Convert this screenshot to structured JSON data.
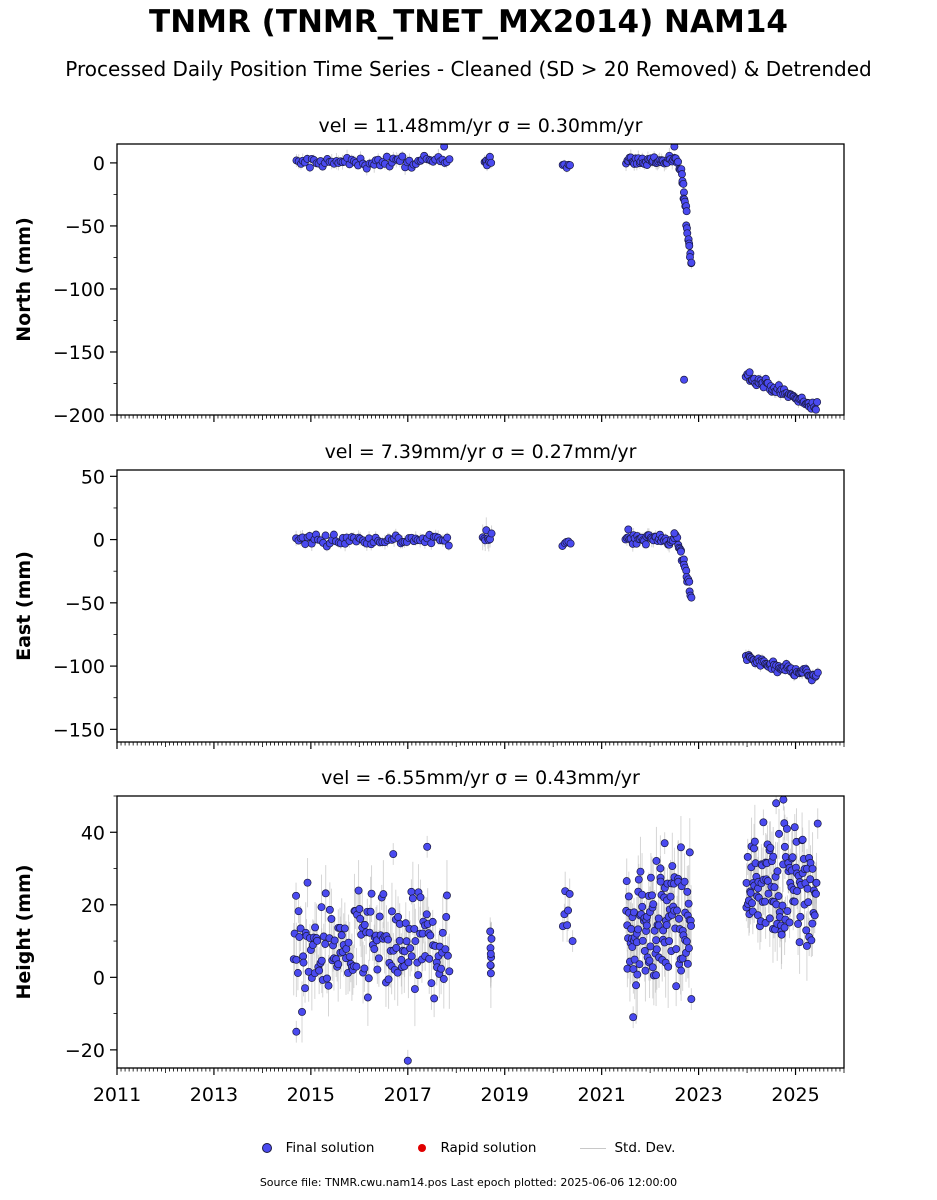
{
  "title": "TNMR (TNMR_TNET_MX2014) NAM14",
  "subtitle": "Processed Daily Position Time Series - Cleaned (SD > 20 Removed) & Detrended",
  "legend": {
    "final": "Final solution",
    "rapid": "Rapid solution",
    "std": "Std. Dev."
  },
  "source_note": "Source file: TNMR.cwu.nam14.pos  Last epoch plotted: 2025-06-06 12:00:00",
  "colors": {
    "final": "#4a4af0",
    "final_edge": "#1a1a40",
    "rapid": "#e00000",
    "std": "#b4b4b4"
  },
  "chart_data": [
    {
      "type": "scatter",
      "title": "vel = 11.48mm/yr   σ = 0.30mm/yr",
      "ylabel": "North (mm)",
      "xlim": [
        2011,
        2026
      ],
      "ylim": [
        -200,
        15
      ],
      "yticks": [
        -200,
        -150,
        -100,
        -50,
        0
      ],
      "ytick_labels": [
        "−200",
        "−150",
        "−100",
        "−50",
        "0"
      ],
      "series": [
        {
          "name": "Final solution",
          "segments": [
            {
              "x0": 2014.7,
              "x1": 2017.85,
              "y0": 0,
              "y1": 1,
              "noise": 2.2,
              "sd": 5,
              "n": 70
            },
            {
              "x0": 2018.58,
              "x1": 2018.72,
              "y0": 3,
              "y1": 2,
              "noise": 2,
              "sd": 7,
              "n": 8
            },
            {
              "x0": 2020.2,
              "x1": 2020.35,
              "y0": -1,
              "y1": -2,
              "noise": 1.2,
              "sd": 3,
              "n": 5
            },
            {
              "x0": 2021.5,
              "x1": 2022.5,
              "y0": 1,
              "y1": 2,
              "noise": 2,
              "sd": 5,
              "n": 40
            },
            {
              "x0": 2022.52,
              "x1": 2022.65,
              "y0": 1,
              "y1": -5,
              "noise": 2,
              "sd": 4,
              "n": 6
            },
            {
              "x0": 2022.65,
              "x1": 2022.85,
              "y0": -10,
              "y1": -80,
              "noise": 3,
              "sd": 4,
              "n": 22
            },
            {
              "x0": 2023.98,
              "x1": 2025.45,
              "y0": -168,
              "y1": -195,
              "noise": 2,
              "sd": 4,
              "n": 65
            }
          ],
          "extra_points": [
            [
              2017.75,
              13
            ],
            [
              2022.5,
              13
            ],
            [
              2022.7,
              -172
            ]
          ]
        }
      ]
    },
    {
      "type": "scatter",
      "title": "vel = 7.39mm/yr   σ = 0.27mm/yr",
      "ylabel": "East (mm)",
      "xlim": [
        2011,
        2026
      ],
      "ylim": [
        -160,
        55
      ],
      "yticks": [
        -150,
        -100,
        -50,
        0,
        50
      ],
      "ytick_labels": [
        "−150",
        "−100",
        "−50",
        "0",
        "50"
      ],
      "series": [
        {
          "name": "Final solution",
          "segments": [
            {
              "x0": 2014.7,
              "x1": 2017.85,
              "y0": 0,
              "y1": 0,
              "noise": 2.2,
              "sd": 5,
              "n": 70
            },
            {
              "x0": 2018.55,
              "x1": 2018.72,
              "y0": 0,
              "y1": 0,
              "noise": 3,
              "sd": 9,
              "n": 8
            },
            {
              "x0": 2020.2,
              "x1": 2020.35,
              "y0": -2,
              "y1": -2,
              "noise": 1.5,
              "sd": 3,
              "n": 5
            },
            {
              "x0": 2021.5,
              "x1": 2022.55,
              "y0": 1,
              "y1": 0,
              "noise": 2,
              "sd": 5,
              "n": 40
            },
            {
              "x0": 2022.58,
              "x1": 2022.85,
              "y0": -3,
              "y1": -42,
              "noise": 2.5,
              "sd": 4,
              "n": 18
            },
            {
              "x0": 2023.98,
              "x1": 2025.45,
              "y0": -94,
              "y1": -108,
              "noise": 2,
              "sd": 4,
              "n": 65
            }
          ],
          "extra_points": [
            [
              2021.55,
              8
            ],
            [
              2022.5,
              5
            ]
          ]
        }
      ]
    },
    {
      "type": "scatter",
      "title": "vel = -6.55mm/yr   σ = 0.43mm/yr",
      "ylabel": "Height (mm)",
      "xlim": [
        2011,
        2026
      ],
      "ylim": [
        -25,
        50
      ],
      "yticks": [
        -20,
        0,
        20,
        40
      ],
      "ytick_labels": [
        "−20",
        "0",
        "20",
        "40"
      ],
      "xticks": [
        2011,
        2013,
        2015,
        2017,
        2019,
        2021,
        2023,
        2025
      ],
      "xtick_labels": [
        "2011",
        "2013",
        "2015",
        "2017",
        "2019",
        "2021",
        "2023",
        "2025"
      ],
      "series": [
        {
          "name": "Final solution",
          "segments": [
            {
              "x0": 2014.65,
              "x1": 2017.85,
              "y0": 8,
              "y1": 8,
              "noise": 7,
              "sd": 8,
              "n": 160
            },
            {
              "x0": 2018.7,
              "x1": 2018.72,
              "y0": 8,
              "y1": 8,
              "noise": 5,
              "sd": 8,
              "n": 8
            },
            {
              "x0": 2020.2,
              "x1": 2020.33,
              "y0": 18,
              "y1": 18,
              "noise": 4,
              "sd": 6,
              "n": 6
            },
            {
              "x0": 2021.5,
              "x1": 2022.85,
              "y0": 15,
              "y1": 15,
              "noise": 8,
              "sd": 9,
              "n": 120
            },
            {
              "x0": 2023.98,
              "x1": 2025.45,
              "y0": 26,
              "y1": 25,
              "noise": 7,
              "sd": 8,
              "n": 120
            }
          ],
          "extra_points": [
            [
              2017.0,
              -23
            ],
            [
              2016.7,
              34
            ],
            [
              2017.4,
              36
            ],
            [
              2022.3,
              37
            ],
            [
              2024.6,
              48
            ],
            [
              2024.75,
              49
            ],
            [
              2021.65,
              -11
            ],
            [
              2014.7,
              -15
            ],
            [
              2022.85,
              -6
            ],
            [
              2020.4,
              10
            ]
          ]
        }
      ]
    }
  ]
}
